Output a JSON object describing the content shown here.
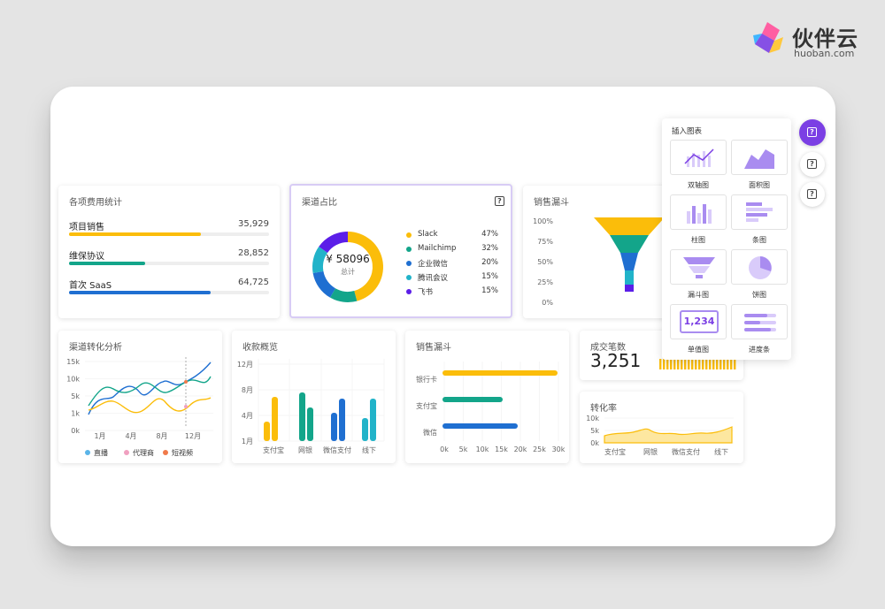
{
  "brand": {
    "name": "伙伴云",
    "domain": "huoban.com"
  },
  "colors": {
    "yellow": "#fbbd0a",
    "teal": "#13a58a",
    "blue": "#1f6fd1",
    "cyan": "#21b3c9",
    "purple": "#5b1ee8",
    "accent": "#7b3fe4"
  },
  "expense_card": {
    "title": "各项费用统计",
    "items": [
      {
        "label": "项目销售",
        "value": "35,929",
        "fill": 0.66,
        "color": "#fbbd0a"
      },
      {
        "label": "维保协议",
        "value": "28,852",
        "fill": 0.38,
        "color": "#13a58a"
      },
      {
        "label": "首次 SaaS",
        "value": "64,725",
        "fill": 0.71,
        "color": "#1f6fd1"
      }
    ]
  },
  "channel_card": {
    "title": "渠道占比",
    "center_value": "¥ 58096",
    "center_label": "总计",
    "legend": [
      {
        "name": "Slack",
        "pct": "47%",
        "color": "#fbbd0a"
      },
      {
        "name": "Mailchimp",
        "pct": "32%",
        "color": "#13a58a"
      },
      {
        "name": "企业微信",
        "pct": "20%",
        "color": "#1f6fd1"
      },
      {
        "name": "腾讯会议",
        "pct": "15%",
        "color": "#21b3c9"
      },
      {
        "name": "飞书",
        "pct": "15%",
        "color": "#5b1ee8"
      }
    ]
  },
  "funnel_card": {
    "title": "销售漏斗",
    "ticks": [
      "100%",
      "75%",
      "50%",
      "25%",
      "0%"
    ]
  },
  "conversion_card": {
    "title": "渠道转化分析",
    "y_ticks": [
      "15k",
      "10k",
      "5k",
      "1k",
      "0k"
    ],
    "x_ticks": [
      "1月",
      "4月",
      "8月",
      "12月"
    ],
    "legend": [
      {
        "name": "直播",
        "color": "#5ab4e8"
      },
      {
        "name": "代理商",
        "color": "#f0a0c0"
      },
      {
        "name": "短视频",
        "color": "#f07a4a"
      }
    ]
  },
  "payment_card": {
    "title": "收款概览",
    "y_ticks": [
      "12月",
      "8月",
      "4月",
      "1月"
    ],
    "x_ticks": [
      "支付宝",
      "网银",
      "微信支付",
      "线下"
    ]
  },
  "funnel2_card": {
    "title": "销售漏斗",
    "categories": [
      "银行卡",
      "支付宝",
      "微信"
    ],
    "x_ticks": [
      "0k",
      "5k",
      "10k",
      "15k",
      "20k",
      "25k",
      "30k"
    ]
  },
  "deals_card": {
    "title": "成交笔数",
    "value": "3,251"
  },
  "rate_card": {
    "title": "转化率",
    "y_ticks": [
      "10k",
      "5k",
      "0k"
    ],
    "x_ticks": [
      "支付宝",
      "网银",
      "微信支付",
      "线下"
    ]
  },
  "insert_panel": {
    "title": "插入图表",
    "tiles": [
      {
        "label": "双轴图",
        "icon": "dual-axis-chart-icon"
      },
      {
        "label": "面积图",
        "icon": "area-chart-icon"
      },
      {
        "label": "柱图",
        "icon": "column-chart-icon"
      },
      {
        "label": "条图",
        "icon": "bar-chart-icon"
      },
      {
        "label": "漏斗图",
        "icon": "funnel-chart-icon"
      },
      {
        "label": "饼图",
        "icon": "pie-chart-icon"
      },
      {
        "label": "单值图",
        "icon": "single-value-chart-icon",
        "sample": "1,234"
      },
      {
        "label": "进度条",
        "icon": "progress-bar-chart-icon"
      }
    ]
  },
  "side_buttons": {
    "symbol": "?"
  }
}
